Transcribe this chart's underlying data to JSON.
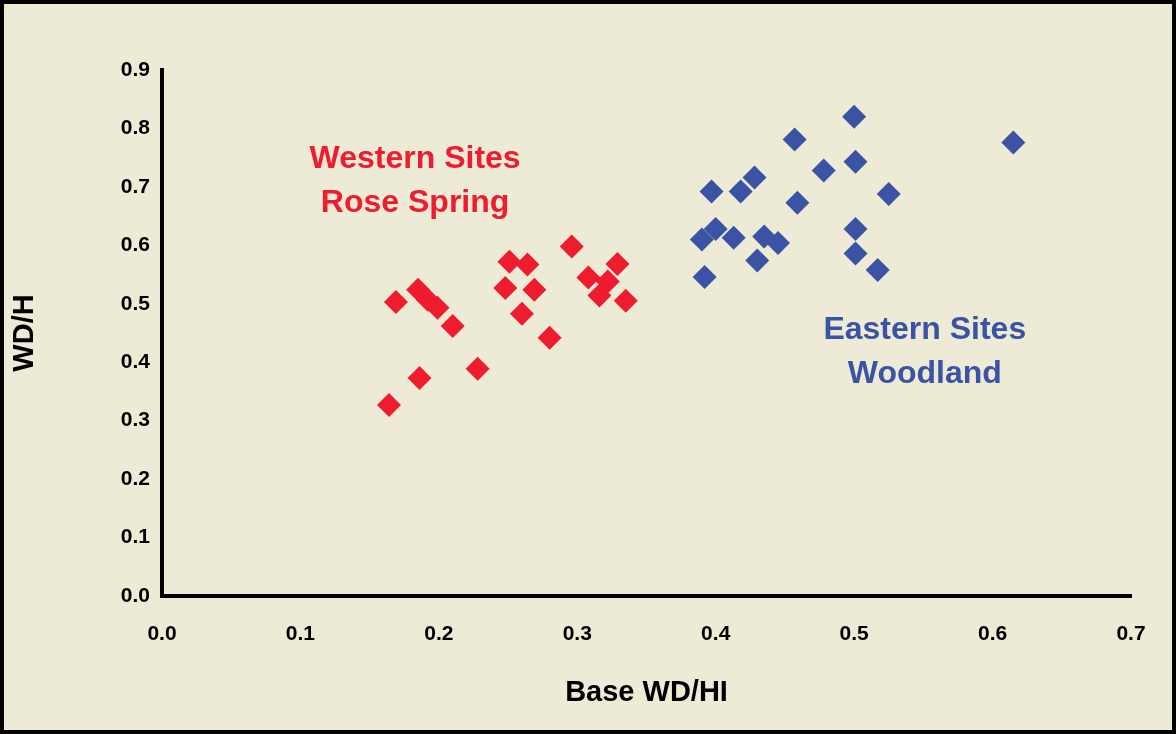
{
  "chart_data": {
    "type": "scatter",
    "xlabel": "Base WD/HI",
    "ylabel": "WD/H",
    "xlim": [
      0,
      0.7
    ],
    "ylim": [
      0,
      0.9
    ],
    "xticks": [
      {
        "value": 0,
        "label": "0.0"
      },
      0.1,
      0.2,
      0.3,
      0.4,
      0.5,
      0.6,
      0.7
    ],
    "yticks": [
      {
        "value": 0,
        "label": "0.0"
      },
      0.1,
      0.2,
      0.3,
      0.4,
      0.5,
      0.6,
      0.7,
      0.8,
      0.9
    ],
    "grid": false,
    "legend": false,
    "marker": "diamond",
    "series": [
      {
        "name": "Western Sites\nRose Spring",
        "color": "#ee1c2e",
        "x": [
          0.164,
          0.169,
          0.185,
          0.186,
          0.192,
          0.199,
          0.21,
          0.228,
          0.248,
          0.251,
          0.26,
          0.264,
          0.269,
          0.28,
          0.296,
          0.308,
          0.316,
          0.322,
          0.329,
          0.335
        ],
        "values": [
          0.327,
          0.503,
          0.524,
          0.373,
          0.507,
          0.493,
          0.462,
          0.389,
          0.527,
          0.572,
          0.483,
          0.567,
          0.524,
          0.442,
          0.598,
          0.545,
          0.514,
          0.538,
          0.568,
          0.505
        ]
      },
      {
        "name": "Eastern Sites\nWoodland",
        "color": "#3b53a4",
        "x": [
          0.392,
          0.39,
          0.397,
          0.4,
          0.413,
          0.418,
          0.428,
          0.43,
          0.435,
          0.445,
          0.457,
          0.459,
          0.478,
          0.5,
          0.501,
          0.501,
          0.501,
          0.517,
          0.525,
          0.615
        ],
        "values": [
          0.546,
          0.61,
          0.692,
          0.628,
          0.613,
          0.692,
          0.716,
          0.574,
          0.615,
          0.604,
          0.781,
          0.673,
          0.728,
          0.82,
          0.743,
          0.628,
          0.586,
          0.558,
          0.688,
          0.776
        ]
      }
    ]
  }
}
